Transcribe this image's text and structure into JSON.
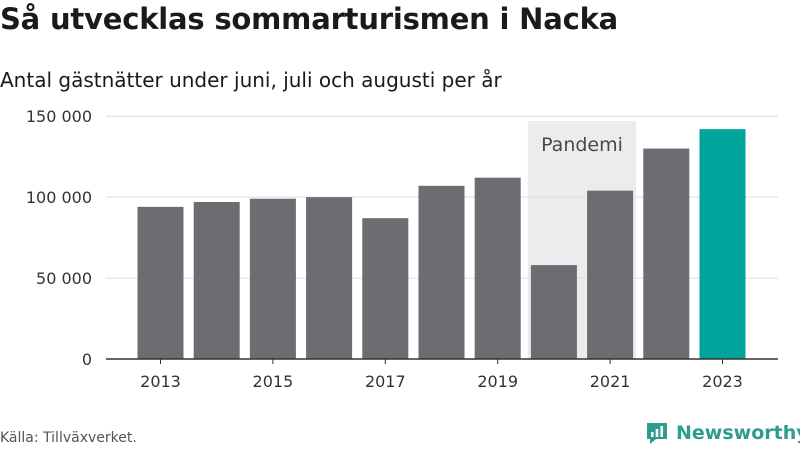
{
  "header": {
    "title": "Så utvecklas sommarturismen i Nacka",
    "subtitle": "Antal gästnätter under juni, juli och augusti per år"
  },
  "footer": {
    "source": "Källa: Tillväxverket.",
    "brand": "Newsworthy"
  },
  "colors": {
    "bar": "#6d6c72",
    "highlight": "#00a49a",
    "band": "#ececec",
    "grid": "#dedede",
    "axis": "#333333",
    "brand": "#2e9c8f"
  },
  "chart_data": {
    "type": "bar",
    "categories": [
      "2013",
      "2014",
      "2015",
      "2016",
      "2017",
      "2018",
      "2019",
      "2020",
      "2021",
      "2022",
      "2023"
    ],
    "values": [
      94000,
      97000,
      99000,
      100000,
      87000,
      107000,
      112000,
      58000,
      104000,
      130000,
      142000
    ],
    "highlight_category": "2023",
    "xticks": [
      "2013",
      "2015",
      "2017",
      "2019",
      "2021",
      "2023"
    ],
    "yticks": [
      0,
      50000,
      100000,
      150000
    ],
    "ytick_labels": [
      "0",
      "50 000",
      "100 000",
      "150 000"
    ],
    "ylim": [
      0,
      160000
    ],
    "grid": true,
    "annotation": {
      "label": "Pandemi",
      "from_category": "2020",
      "to_category": "2021"
    }
  }
}
